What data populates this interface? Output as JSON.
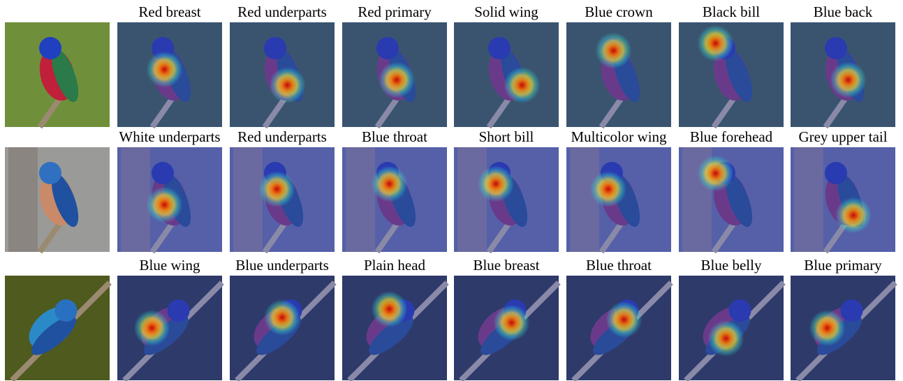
{
  "rows": [
    {
      "labels": [
        "Red breast",
        "Red underparts",
        "Red primary",
        "Solid wing",
        "Blue crown",
        "Black bill",
        "Blue back"
      ]
    },
    {
      "labels": [
        "White underparts",
        "Red underparts",
        "Blue throat",
        "Short bill",
        "Multicolor wing",
        "Blue forehead",
        "Grey upper tail"
      ]
    },
    {
      "labels": [
        "Blue wing",
        "Blue underparts",
        "Plain head",
        "Blue breast",
        "Blue throat",
        "Blue belly",
        "Blue primary"
      ]
    }
  ]
}
